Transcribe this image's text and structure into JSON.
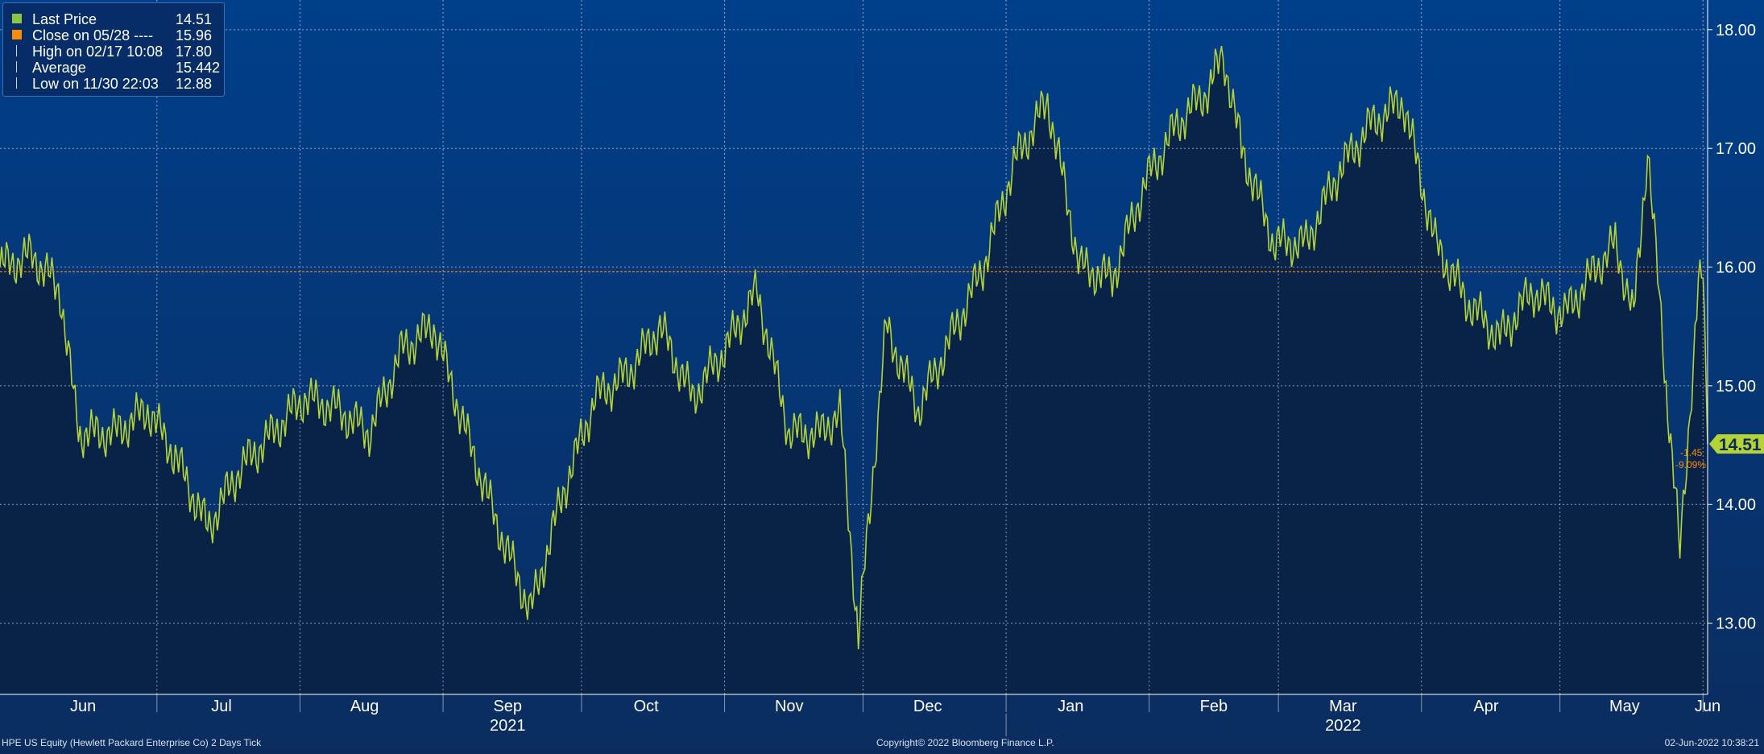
{
  "footer": {
    "left": "HPE US Equity (Hewlett Packard Enterprise Co) 2 Days  Tick",
    "copyright": "Copyright© 2022 Bloomberg Finance L.P.",
    "timestamp": "02-Jun-2022 10:38:21"
  },
  "legend": [
    {
      "label": "Last Price",
      "value": "14.51",
      "swatch": "#8dc63f",
      "marker": "square"
    },
    {
      "label": "Close on 05/28 ----",
      "value": "15.96",
      "swatch": "#ff8c00",
      "marker": "square"
    },
    {
      "label": "High on 02/17 10:08",
      "value": "17.80",
      "swatch": "#c9d4e6",
      "marker": "high"
    },
    {
      "label": "Average",
      "value": "15.442",
      "swatch": "#c9d4e6",
      "marker": "average"
    },
    {
      "label": "Low on 11/30 22:03",
      "value": "12.88",
      "swatch": "#c9d4e6",
      "marker": "low"
    }
  ],
  "colors": {
    "background_top": "#003f8a",
    "background_bottom": "#0a2a5c",
    "area_fill": "#0a2244",
    "price_line": "#b5d334",
    "close_line": "#ff8c00",
    "last_price_badge": "#b5d334",
    "change_text": "#ff8c00",
    "grid": "#ffffff",
    "axis_text": "#ffffff"
  },
  "chart_data": {
    "type": "area",
    "y_axis_side": "right",
    "ylim": [
      12.4,
      18.25
    ],
    "y_ticks": [
      "13.00",
      "14.00",
      "15.00",
      "16.00",
      "17.00",
      "18.00"
    ],
    "y_tick_values": [
      13,
      14,
      15,
      16,
      17,
      18
    ],
    "x_month_ticks": [
      "Jun",
      "Jul",
      "Aug",
      "Sep",
      "Oct",
      "Nov",
      "Dec",
      "Jan",
      "Feb",
      "Mar",
      "Apr",
      "May",
      "Jun"
    ],
    "x_years": [
      "2021",
      "2022"
    ],
    "xlim": [
      "2021-05-28",
      "2022-06-02"
    ],
    "series": [
      {
        "name": "Last Price",
        "x": [
          "2021-05-28",
          "2021-06-04",
          "2021-06-10",
          "2021-06-14",
          "2021-06-22",
          "2021-06-29",
          "2021-07-05",
          "2021-07-12",
          "2021-07-19",
          "2021-07-26",
          "2021-08-02",
          "2021-08-09",
          "2021-08-16",
          "2021-08-23",
          "2021-08-30",
          "2021-09-06",
          "2021-09-13",
          "2021-09-20",
          "2021-09-27",
          "2021-10-04",
          "2021-10-11",
          "2021-10-18",
          "2021-10-25",
          "2021-11-01",
          "2021-11-08",
          "2021-11-15",
          "2021-11-22",
          "2021-11-26",
          "2021-11-30",
          "2021-12-06",
          "2021-12-13",
          "2021-12-20",
          "2021-12-27",
          "2022-01-03",
          "2022-01-10",
          "2022-01-17",
          "2022-01-24",
          "2022-01-31",
          "2022-02-07",
          "2022-02-14",
          "2022-02-17",
          "2022-02-21",
          "2022-02-28",
          "2022-03-07",
          "2022-03-14",
          "2022-03-21",
          "2022-03-28",
          "2022-04-04",
          "2022-04-11",
          "2022-04-18",
          "2022-04-25",
          "2022-05-02",
          "2022-05-09",
          "2022-05-13",
          "2022-05-17",
          "2022-05-20",
          "2022-05-24",
          "2022-05-27",
          "2022-05-31",
          "2022-06-01",
          "2022-06-02"
        ],
        "y": [
          16.0,
          16.1,
          15.8,
          14.6,
          14.6,
          14.8,
          14.4,
          13.8,
          14.3,
          14.6,
          14.9,
          14.8,
          14.6,
          15.3,
          15.5,
          14.6,
          13.8,
          13.1,
          14.1,
          14.9,
          15.1,
          15.5,
          14.9,
          15.3,
          15.8,
          14.6,
          14.6,
          14.8,
          12.88,
          15.5,
          14.8,
          15.4,
          16.0,
          16.9,
          17.4,
          16.0,
          15.9,
          16.7,
          17.2,
          17.5,
          17.8,
          17.0,
          16.2,
          16.2,
          16.8,
          17.2,
          17.4,
          16.2,
          15.7,
          15.4,
          15.8,
          15.6,
          16.0,
          16.2,
          15.6,
          17.0,
          15.0,
          13.6,
          15.8,
          15.96,
          14.51
        ]
      }
    ],
    "reference_line": {
      "label": "Close on 05/28",
      "value": 15.96
    },
    "last_value_label": "14.51",
    "change_labels": [
      "-1.45",
      "-9.09%"
    ],
    "grid": true
  }
}
